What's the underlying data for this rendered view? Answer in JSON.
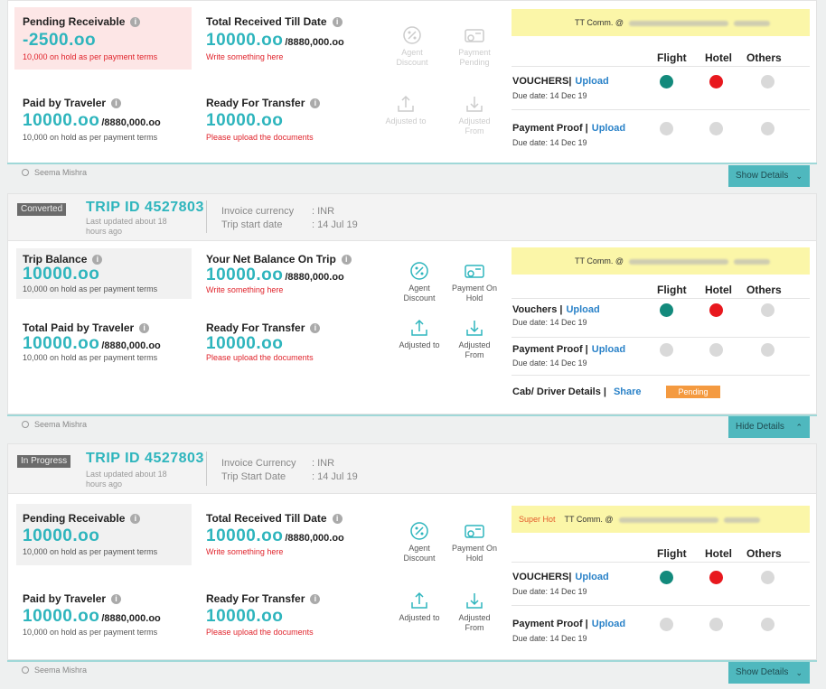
{
  "common": {
    "info_glyph": "i",
    "hold_note": "10,000 on hold as per payment terms",
    "write_note": "Write something here",
    "upload_note": "Please upload the documents",
    "amount": "10000.oo",
    "total": "/8880,000.oo",
    "tt_comm": "TT Comm. @",
    "col_flight": "Flight",
    "col_hotel": "Hotel",
    "col_others": "Others",
    "upload": "Upload",
    "share": "Share",
    "due": "Due date: 14 Dec 19",
    "user": "Seema Mishra",
    "invoice_value": ": INR",
    "start_value": ": 14 Jul 19",
    "trip_id": "TRIP ID 4527803",
    "updated": "Last updated about 18 hours ago",
    "actions": {
      "agent_discount": "Agent Discount",
      "payment_pending": "Payment Pending",
      "payment_on_hold": "Payment On Hold",
      "adjusted_to": "Adjusted to",
      "adjusted_from": "Adjusted From"
    },
    "colors": {
      "teal": "#2eb5bd",
      "red": "#e0242c",
      "link": "#2a82c8",
      "dot_green": "#138a7c",
      "dot_red": "#e8181e"
    }
  },
  "card1": {
    "pending_label": "Pending Receivable",
    "pending_amount": "-2500.oo",
    "total_received_label": "Total Received Till Date",
    "paid_label": "Paid by Traveler",
    "ready_label": "Ready For Transfer",
    "vouchers": "VOUCHERS|",
    "payment_proof": "Payment Proof |",
    "details_button": "Show Details"
  },
  "card2": {
    "status": "Converted",
    "invoice_label": "Invoice currency",
    "start_label": "Trip start date",
    "trip_balance_label": "Trip Balance",
    "net_balance_label": "Your Net Balance On Trip",
    "total_paid_label": "Total Paid by Traveler",
    "ready_label": "Ready For Transfer",
    "vouchers": "Vouchers |",
    "payment_proof": "Payment Proof |",
    "cab": "Cab/ Driver Details |",
    "cab_status": "Pending",
    "details_button": "Hide Details"
  },
  "card3": {
    "status": "In Progress",
    "invoice_label": "Invoice Currency",
    "start_label": "Trip Start Date",
    "pending_label": "Pending Receivable",
    "total_received_label": "Total Received Till Date",
    "paid_label": "Paid by Traveler",
    "ready_label": "Ready For Transfer",
    "super_hot": "Super Hot",
    "vouchers": "VOUCHERS|",
    "payment_proof": "Payment Proof |",
    "details_button": "Show Details"
  }
}
